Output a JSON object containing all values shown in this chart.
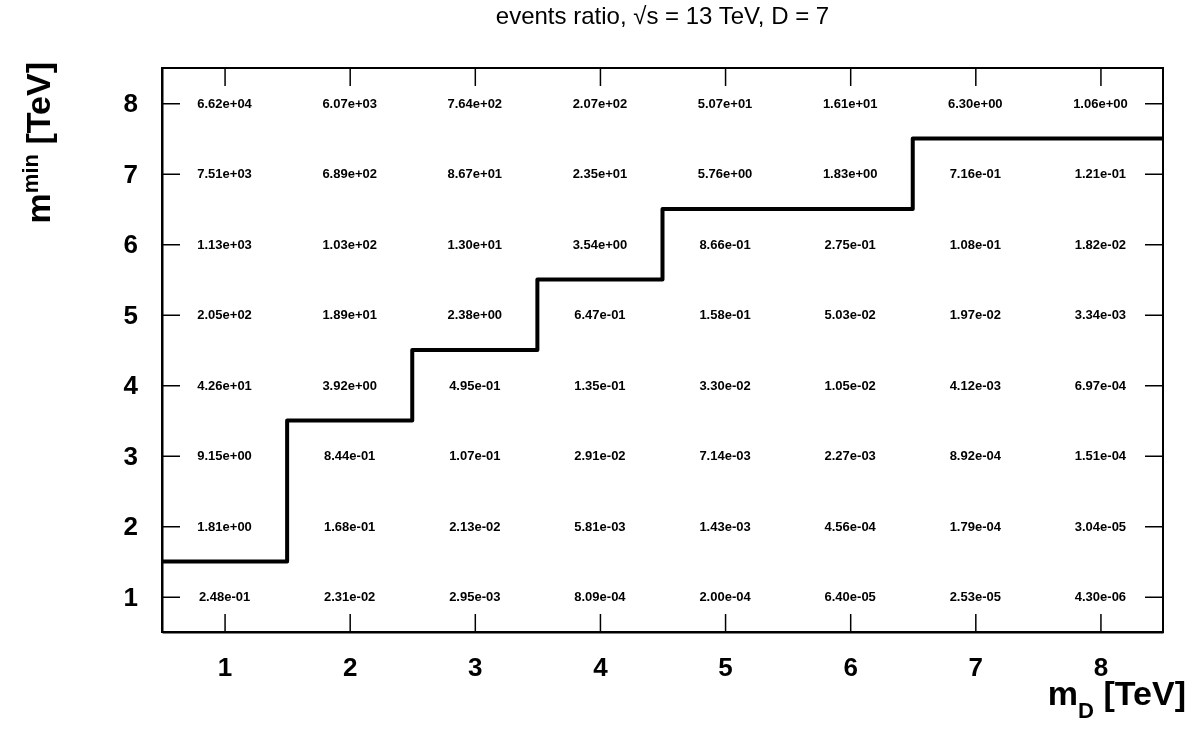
{
  "chart_data": {
    "type": "heatmap",
    "title": "events ratio, √s = 13 TeV, D = 7",
    "xlabel": "m$_{D}$ [TeV]",
    "ylabel": "m$^{min}$ [TeV]",
    "xlim": [
      0.5,
      8.5
    ],
    "ylim": [
      0.5,
      8.5
    ],
    "xticks": [
      1,
      2,
      3,
      4,
      5,
      6,
      7,
      8
    ],
    "yticks": [
      1,
      2,
      3,
      4,
      5,
      6,
      7,
      8
    ],
    "cells": [
      [
        66200.0,
        6070.0,
        764.0,
        207.0,
        50.7,
        16.1,
        6.3,
        1.06
      ],
      [
        7510.0,
        689.0,
        86.7,
        23.5,
        5.76,
        1.83,
        0.716,
        0.121
      ],
      [
        1130.0,
        103.0,
        13.0,
        3.54,
        0.866,
        0.275,
        0.108,
        0.0182
      ],
      [
        205.0,
        18.9,
        2.38,
        0.647,
        0.158,
        0.0503,
        0.0197,
        0.00334
      ],
      [
        42.6,
        3.92,
        0.495,
        0.135,
        0.033,
        0.0105,
        0.00412,
        0.000697
      ],
      [
        9.15,
        0.844,
        0.107,
        0.0291,
        0.00714,
        0.00227,
        0.000892,
        0.000151
      ],
      [
        1.81,
        0.168,
        0.0213,
        0.00581,
        0.00143,
        0.000456,
        0.000179,
        3.04e-05
      ],
      [
        0.248,
        0.0231,
        0.00295,
        0.000809,
        0.0002,
        6.4e-05,
        2.53e-05,
        4.3e-06
      ]
    ],
    "cell_labels": [
      [
        "6.62e+04",
        "6.07e+03",
        "7.64e+02",
        "2.07e+02",
        "5.07e+01",
        "1.61e+01",
        "6.30e+00",
        "1.06e+00"
      ],
      [
        "7.51e+03",
        "6.89e+02",
        "8.67e+01",
        "2.35e+01",
        "5.76e+00",
        "1.83e+00",
        "7.16e-01",
        "1.21e-01"
      ],
      [
        "1.13e+03",
        "1.03e+02",
        "1.30e+01",
        "3.54e+00",
        "8.66e-01",
        "2.75e-01",
        "1.08e-01",
        "1.82e-02"
      ],
      [
        "2.05e+02",
        "1.89e+01",
        "2.38e+00",
        "6.47e-01",
        "1.58e-01",
        "5.03e-02",
        "1.97e-02",
        "3.34e-03"
      ],
      [
        "4.26e+01",
        "3.92e+00",
        "4.95e-01",
        "1.35e-01",
        "3.30e-02",
        "1.05e-02",
        "4.12e-03",
        "6.97e-04"
      ],
      [
        "9.15e+00",
        "8.44e-01",
        "1.07e-01",
        "2.91e-02",
        "7.14e-03",
        "2.27e-03",
        "8.92e-04",
        "1.51e-04"
      ],
      [
        "1.81e+00",
        "1.68e-01",
        "2.13e-02",
        "5.81e-03",
        "1.43e-03",
        "4.56e-04",
        "1.79e-04",
        "3.04e-05"
      ],
      [
        "2.48e-01",
        "2.31e-02",
        "2.95e-03",
        "8.09e-04",
        "2.00e-04",
        "6.40e-05",
        "2.53e-05",
        "4.30e-06"
      ]
    ],
    "series": [
      {
        "type": "line",
        "color": "#000000",
        "x": [
          0.5,
          1.5,
          1.5,
          2.5,
          2.5,
          3.5,
          3.5,
          4.5,
          4.5,
          6.5,
          6.5,
          8.5
        ],
        "values": [
          1.5,
          1.5,
          3.5,
          3.5,
          4.5,
          4.5,
          5.5,
          5.5,
          6.5,
          6.5,
          7.5,
          7.5
        ]
      }
    ]
  }
}
